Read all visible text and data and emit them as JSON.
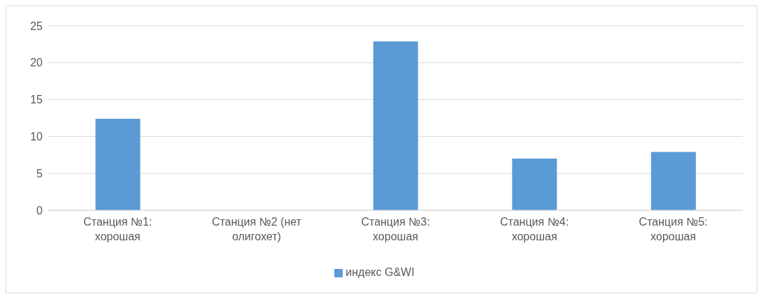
{
  "chart_data": {
    "type": "bar",
    "categories": [
      "Станция №1: хорошая",
      "Станция №2 (нет олигохет)",
      "Станция №3: хорошая",
      "Станция №4: хорошая",
      "Станция №5: хорошая"
    ],
    "series": [
      {
        "name": "индекс G&WI",
        "color": "#5b9bd5",
        "values": [
          12.4,
          0,
          22.9,
          7,
          7.9
        ]
      }
    ],
    "ylim": [
      0,
      25
    ],
    "yticks": [
      0,
      5,
      10,
      15,
      20,
      25
    ],
    "grid": "y",
    "legend": "bottom"
  }
}
